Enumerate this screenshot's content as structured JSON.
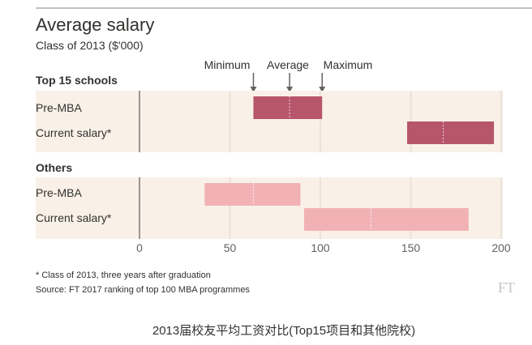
{
  "caption": "2013届校友平均工资对比(Top15项目和其他院校)",
  "logo": "FT",
  "colors": {
    "panel_bg": "#f9f1e8",
    "top15_bar": "#b7556b",
    "others_bar": "#f2b2b5",
    "axis_text": "#66605c",
    "grid": "#e6ddd3"
  },
  "chart_data": {
    "type": "bar",
    "orientation": "horizontal-range",
    "title": "Average salary",
    "subtitle": "Class of 2013 ($'000)",
    "legend_labels": [
      "Minimum",
      "Average",
      "Maximum"
    ],
    "xlim": [
      0,
      200
    ],
    "xticks": [
      0,
      50,
      100,
      150,
      200
    ],
    "grid": true,
    "groups": [
      {
        "name": "Top 15 schools",
        "rows": [
          {
            "label": "Pre-MBA",
            "min": 63,
            "avg": 83,
            "max": 101
          },
          {
            "label": "Current salary*",
            "min": 148,
            "avg": 168,
            "max": 196
          }
        ]
      },
      {
        "name": "Others",
        "rows": [
          {
            "label": "Pre-MBA",
            "min": 36,
            "avg": 63,
            "max": 89
          },
          {
            "label": "Current salary*",
            "min": 91,
            "avg": 128,
            "max": 182
          }
        ]
      }
    ],
    "footnote": "* Class of 2013, three years after graduation",
    "source": "Source: FT 2017 ranking of top 100 MBA programmes"
  }
}
